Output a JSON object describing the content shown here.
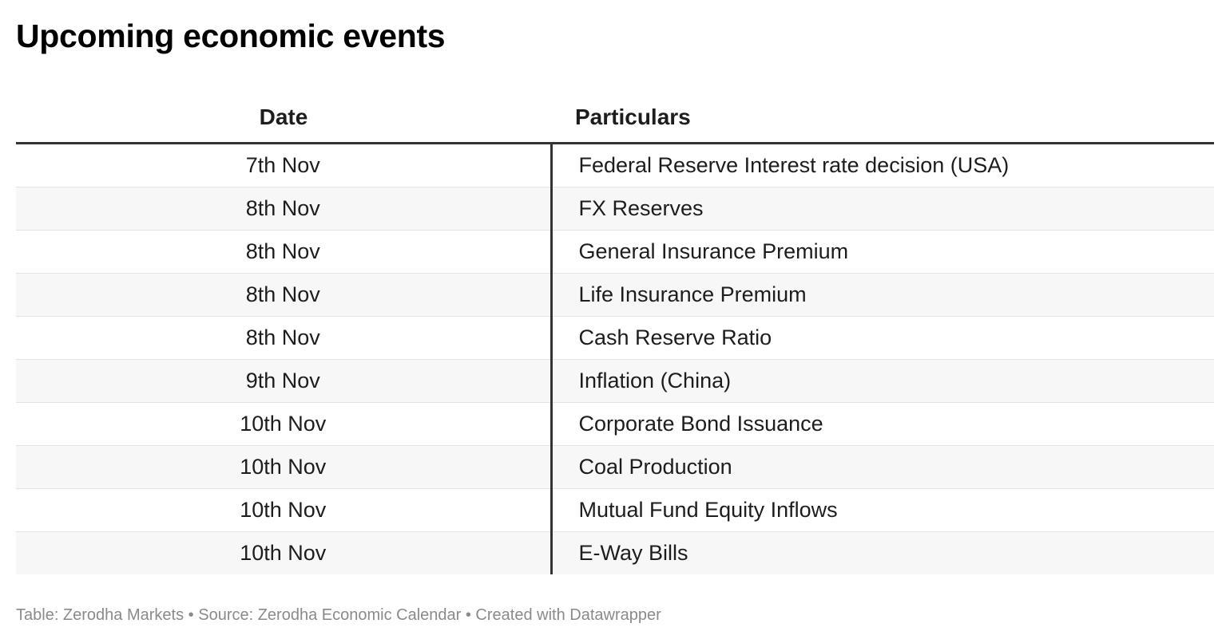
{
  "title": "Upcoming economic events",
  "chart_data": {
    "type": "table",
    "title": "Upcoming economic events",
    "columns": [
      "Date",
      "Particulars"
    ],
    "rows": [
      [
        "7th Nov",
        "Federal Reserve Interest rate decision (USA)"
      ],
      [
        "8th Nov",
        "FX Reserves"
      ],
      [
        "8th Nov",
        "General Insurance Premium"
      ],
      [
        "8th Nov",
        "Life Insurance Premium"
      ],
      [
        "8th Nov",
        "Cash Reserve Ratio"
      ],
      [
        "9th Nov",
        "Inflation (China)"
      ],
      [
        "10th Nov",
        "Corporate Bond Issuance"
      ],
      [
        "10th Nov",
        "Coal Production"
      ],
      [
        "10th Nov",
        "Mutual Fund Equity Inflows"
      ],
      [
        "10th Nov",
        "E-Way Bills"
      ]
    ]
  },
  "footer": {
    "table_label": "Table: Zerodha Markets",
    "separator": " • ",
    "source": "Source: Zerodha Economic Calendar",
    "created_with": "Created with Datawrapper"
  },
  "colors": {
    "header_rule": "#333333",
    "row_stripe": "#f7f7f7",
    "row_divider": "#e3e3e3",
    "footer_text": "#8a8a8a"
  }
}
